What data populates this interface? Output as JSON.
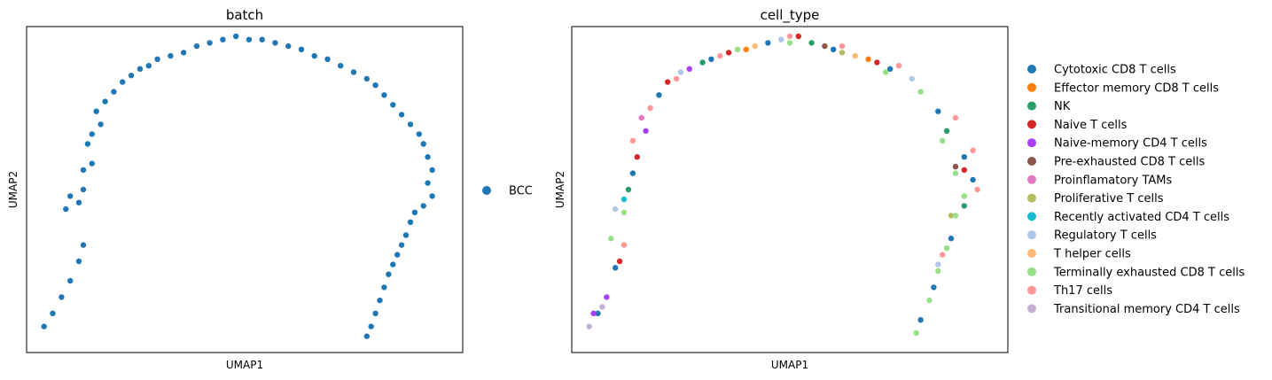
{
  "chart_data": [
    {
      "type": "scatter",
      "title": "batch",
      "xlabel": "UMAP1",
      "ylabel": "UMAP2",
      "xticks": [],
      "yticks": [],
      "legend_position": "right",
      "series": [
        {
          "name": "BCC",
          "color": "#1f77b4",
          "points": [
            [
              0.04,
              0.08
            ],
            [
              0.06,
              0.12
            ],
            [
              0.08,
              0.17
            ],
            [
              0.1,
              0.22
            ],
            [
              0.12,
              0.28
            ],
            [
              0.13,
              0.33
            ],
            [
              0.09,
              0.44
            ],
            [
              0.1,
              0.48
            ],
            [
              0.12,
              0.46
            ],
            [
              0.13,
              0.5
            ],
            [
              0.13,
              0.56
            ],
            [
              0.15,
              0.58
            ],
            [
              0.14,
              0.64
            ],
            [
              0.15,
              0.67
            ],
            [
              0.17,
              0.7
            ],
            [
              0.16,
              0.74
            ],
            [
              0.18,
              0.77
            ],
            [
              0.2,
              0.8
            ],
            [
              0.22,
              0.83
            ],
            [
              0.24,
              0.85
            ],
            [
              0.26,
              0.87
            ],
            [
              0.28,
              0.88
            ],
            [
              0.3,
              0.9
            ],
            [
              0.33,
              0.91
            ],
            [
              0.36,
              0.92
            ],
            [
              0.39,
              0.94
            ],
            [
              0.42,
              0.95
            ],
            [
              0.45,
              0.96
            ],
            [
              0.48,
              0.97
            ],
            [
              0.51,
              0.96
            ],
            [
              0.54,
              0.96
            ],
            [
              0.57,
              0.95
            ],
            [
              0.6,
              0.94
            ],
            [
              0.63,
              0.93
            ],
            [
              0.66,
              0.91
            ],
            [
              0.69,
              0.9
            ],
            [
              0.72,
              0.88
            ],
            [
              0.75,
              0.86
            ],
            [
              0.78,
              0.84
            ],
            [
              0.8,
              0.82
            ],
            [
              0.82,
              0.79
            ],
            [
              0.84,
              0.76
            ],
            [
              0.86,
              0.73
            ],
            [
              0.88,
              0.7
            ],
            [
              0.9,
              0.67
            ],
            [
              0.91,
              0.64
            ],
            [
              0.92,
              0.6
            ],
            [
              0.93,
              0.56
            ],
            [
              0.92,
              0.52
            ],
            [
              0.93,
              0.48
            ],
            [
              0.91,
              0.45
            ],
            [
              0.89,
              0.43
            ],
            [
              0.88,
              0.4
            ],
            [
              0.87,
              0.36
            ],
            [
              0.86,
              0.33
            ],
            [
              0.85,
              0.3
            ],
            [
              0.84,
              0.27
            ],
            [
              0.83,
              0.24
            ],
            [
              0.82,
              0.2
            ],
            [
              0.81,
              0.16
            ],
            [
              0.8,
              0.12
            ],
            [
              0.79,
              0.08
            ],
            [
              0.78,
              0.05
            ]
          ]
        }
      ]
    },
    {
      "type": "scatter",
      "title": "cell_type",
      "xlabel": "UMAP1",
      "ylabel": "UMAP2",
      "xticks": [],
      "yticks": [],
      "legend_position": "right",
      "series": [
        {
          "name": "Cytotoxic CD8 T cells",
          "color": "#1f77b4",
          "points": [
            [
              0.06,
              0.12
            ],
            [
              0.1,
              0.26
            ],
            [
              0.14,
              0.55
            ],
            [
              0.2,
              0.79
            ],
            [
              0.32,
              0.9
            ],
            [
              0.45,
              0.95
            ],
            [
              0.6,
              0.93
            ],
            [
              0.73,
              0.87
            ],
            [
              0.84,
              0.74
            ],
            [
              0.9,
              0.6
            ],
            [
              0.92,
              0.53
            ],
            [
              0.87,
              0.35
            ],
            [
              0.83,
              0.2
            ],
            [
              0.8,
              0.1
            ]
          ]
        },
        {
          "name": "Effector memory CD8 T cells",
          "color": "#ff7f0e",
          "points": [
            [
              0.4,
              0.93
            ],
            [
              0.68,
              0.9
            ]
          ]
        },
        {
          "name": "NK",
          "color": "#279e68",
          "points": [
            [
              0.13,
              0.5
            ],
            [
              0.3,
              0.89
            ],
            [
              0.55,
              0.95
            ],
            [
              0.86,
              0.68
            ],
            [
              0.9,
              0.45
            ]
          ]
        },
        {
          "name": "Naive T cells",
          "color": "#d62728",
          "points": [
            [
              0.11,
              0.28
            ],
            [
              0.15,
              0.6
            ],
            [
              0.22,
              0.83
            ],
            [
              0.36,
              0.92
            ],
            [
              0.52,
              0.97
            ],
            [
              0.7,
              0.89
            ],
            [
              0.9,
              0.56
            ]
          ]
        },
        {
          "name": "Naive-memory CD4 T cells",
          "color": "#aa40fc",
          "points": [
            [
              0.05,
              0.12
            ],
            [
              0.08,
              0.17
            ],
            [
              0.17,
              0.68
            ],
            [
              0.27,
              0.87
            ]
          ]
        },
        {
          "name": "Pre-exhausted CD8 T cells",
          "color": "#8c564b",
          "points": [
            [
              0.58,
              0.94
            ],
            [
              0.88,
              0.57
            ]
          ]
        },
        {
          "name": "Proinflamatory TAMs",
          "color": "#e377c2",
          "points": [
            [
              0.16,
              0.72
            ]
          ]
        },
        {
          "name": "Proliferative T cells",
          "color": "#b5bd61",
          "points": [
            [
              0.62,
              0.92
            ],
            [
              0.87,
              0.42
            ]
          ]
        },
        {
          "name": "Recently activated CD4 T cells",
          "color": "#17becf",
          "points": [
            [
              0.12,
              0.47
            ]
          ]
        },
        {
          "name": "Regulatory T cells",
          "color": "#aec7e8",
          "points": [
            [
              0.1,
              0.44
            ],
            [
              0.25,
              0.86
            ],
            [
              0.48,
              0.96
            ],
            [
              0.78,
              0.84
            ],
            [
              0.84,
              0.27
            ]
          ]
        },
        {
          "name": "T helper cells",
          "color": "#ffbb78",
          "points": [
            [
              0.42,
              0.94
            ],
            [
              0.65,
              0.91
            ]
          ]
        },
        {
          "name": "Terminally exhausted CD8 T cells",
          "color": "#98df8a",
          "points": [
            [
              0.09,
              0.35
            ],
            [
              0.12,
              0.43
            ],
            [
              0.38,
              0.93
            ],
            [
              0.5,
              0.95
            ],
            [
              0.72,
              0.86
            ],
            [
              0.8,
              0.8
            ],
            [
              0.85,
              0.65
            ],
            [
              0.88,
              0.55
            ],
            [
              0.9,
              0.48
            ],
            [
              0.88,
              0.42
            ],
            [
              0.86,
              0.32
            ],
            [
              0.84,
              0.25
            ],
            [
              0.82,
              0.16
            ],
            [
              0.79,
              0.06
            ]
          ]
        },
        {
          "name": "Th17 cells",
          "color": "#ff9896",
          "points": [
            [
              0.12,
              0.33
            ],
            [
              0.14,
              0.65
            ],
            [
              0.18,
              0.75
            ],
            [
              0.24,
              0.84
            ],
            [
              0.34,
              0.91
            ],
            [
              0.5,
              0.97
            ],
            [
              0.62,
              0.94
            ],
            [
              0.75,
              0.88
            ],
            [
              0.88,
              0.72
            ],
            [
              0.92,
              0.62
            ],
            [
              0.93,
              0.5
            ],
            [
              0.85,
              0.3
            ]
          ]
        },
        {
          "name": "Transitional memory CD4 T cells",
          "color": "#c5b0d5",
          "points": [
            [
              0.04,
              0.08
            ],
            [
              0.07,
              0.14
            ]
          ]
        }
      ]
    }
  ]
}
